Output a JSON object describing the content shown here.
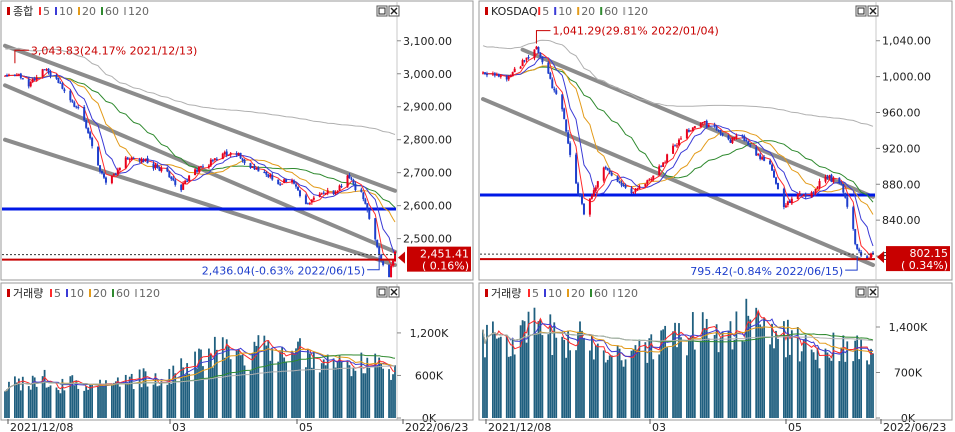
{
  "colors": {
    "up": "#e8001c",
    "down": "#1e3ecc",
    "ma5": "#ff2a2a",
    "ma10": "#3b3bd6",
    "ma20": "#e39b1a",
    "ma60": "#2f8a2f",
    "ma120": "#b0b0b0",
    "volume_bar": "#1f5f7f",
    "channel": "#8c8c8c",
    "support": "#0018e6",
    "current": "#c80000"
  },
  "toolbar": {
    "restore_glyph": "□",
    "close_glyph": "✕"
  },
  "panels": [
    {
      "id": "kospi",
      "price_legend": {
        "name": "종합",
        "ma": [
          "5",
          "10",
          "20",
          "60",
          "120"
        ]
      },
      "volume_legend": {
        "name": "거래량",
        "ma": [
          "5",
          "10",
          "20",
          "60",
          "120"
        ]
      },
      "price_axis": {
        "ticks": [
          "3,100.00",
          "3,000.00",
          "2,900.00",
          "2,800.00",
          "2,700.00",
          "2,600.00",
          "2,500.00"
        ],
        "values": [
          3100,
          3000,
          2900,
          2800,
          2700,
          2600,
          2500
        ],
        "ylim": [
          2420,
          3160
        ]
      },
      "volume_axis": {
        "ticks": [
          "1,200K",
          "600K",
          "0K"
        ],
        "values": [
          1200,
          600,
          0
        ],
        "ylim": [
          0,
          1650
        ]
      },
      "x_ticks": [
        "2021/12/08",
        "03",
        "05",
        "2022/06/23"
      ],
      "x_tick_dates": [
        "2021-12-08",
        "2022-03-02",
        "2022-05-02",
        "2022-06-23"
      ],
      "high_label": "3,043.83(24.17% 2021/12/13)",
      "high_date": "2021-12-13",
      "high_value": 3043.83,
      "low_label": "2,436.04(-0.63% 2022/06/15)",
      "low_date": "2022-06-15",
      "low_value": 2436.04,
      "current_price": "2,451.41",
      "current_change": "( 0.16%)",
      "current_value": 2451.41,
      "support_level": 2590,
      "chart_data": [
        {
          "type": "candlestick",
          "title": "종합",
          "x_range": [
            "2021-12-08",
            "2022-06-23"
          ],
          "ylim": [
            2420,
            3160
          ],
          "approx_close": [
            [
              "2021-12-08",
              3001
            ],
            [
              "2021-12-13",
              3002
            ],
            [
              "2021-12-20",
              2963
            ],
            [
              "2021-12-27",
              3012
            ],
            [
              "2022-01-03",
              2989
            ],
            [
              "2022-01-10",
              2926
            ],
            [
              "2022-01-17",
              2864
            ],
            [
              "2022-01-24",
              2720
            ],
            [
              "2022-01-28",
              2663
            ],
            [
              "2022-02-07",
              2746
            ],
            [
              "2022-02-14",
              2744
            ],
            [
              "2022-02-21",
              2719
            ],
            [
              "2022-02-28",
              2699
            ],
            [
              "2022-03-07",
              2651
            ],
            [
              "2022-03-14",
              2707
            ],
            [
              "2022-03-21",
              2729
            ],
            [
              "2022-03-28",
              2757
            ],
            [
              "2022-04-04",
              2757
            ],
            [
              "2022-04-11",
              2716
            ],
            [
              "2022-04-18",
              2704
            ],
            [
              "2022-04-25",
              2667
            ],
            [
              "2022-05-02",
              2677
            ],
            [
              "2022-05-09",
              2604
            ],
            [
              "2022-05-16",
              2639
            ],
            [
              "2022-05-23",
              2638
            ],
            [
              "2022-05-30",
              2685
            ],
            [
              "2022-06-07",
              2626
            ],
            [
              "2022-06-13",
              2492
            ],
            [
              "2022-06-15",
              2447
            ],
            [
              "2022-06-20",
              2391
            ],
            [
              "2022-06-23",
              2451.41
            ]
          ],
          "lines": [
            {
              "name": "channel-upper",
              "points": [
                [
                  "2021-12-08",
                  3085
                ],
                [
                  "2022-06-23",
                  2645
                ]
              ]
            },
            {
              "name": "channel-middle",
              "points": [
                [
                  "2021-12-08",
                  2965
                ],
                [
                  "2022-06-23",
                  2460
                ]
              ]
            },
            {
              "name": "channel-lower",
              "points": [
                [
                  "2021-12-08",
                  2800
                ],
                [
                  "2022-06-23",
                  2420
                ]
              ]
            }
          ]
        },
        {
          "type": "bar",
          "title": "거래량",
          "x_range": [
            "2021-12-08",
            "2022-06-23"
          ],
          "ylim": [
            0,
            1650
          ],
          "approx_values_k": [
            420,
            520,
            470,
            560,
            440,
            500,
            430,
            470,
            520,
            560,
            540,
            580,
            600,
            640,
            760,
            820,
            900,
            1000,
            880,
            840,
            1080,
            940,
            880,
            920,
            800,
            760,
            700,
            760,
            840,
            680,
            620
          ]
        }
      ]
    },
    {
      "id": "kosdaq",
      "price_legend": {
        "name": "KOSDAQ",
        "ma": [
          "5",
          "10",
          "20",
          "60",
          "120"
        ]
      },
      "volume_legend": {
        "name": "거래량",
        "ma": [
          "5",
          "10",
          "20",
          "60",
          "120"
        ]
      },
      "price_axis": {
        "ticks": [
          "1,040.00",
          "1,000.00",
          "960.00",
          "920.00",
          "880.00",
          "840.00",
          "800.00"
        ],
        "values": [
          1040,
          1000,
          960,
          920,
          880,
          840,
          800
        ],
        "ylim": [
          790,
          1062
        ]
      },
      "volume_axis": {
        "ticks": [
          "1,400K",
          "700K",
          "0K"
        ],
        "values": [
          1400,
          700,
          0
        ],
        "ylim": [
          0,
          1800
        ]
      },
      "x_ticks": [
        "2021/12/08",
        "03",
        "05",
        "2022/06/23"
      ],
      "x_tick_dates": [
        "2021-12-08",
        "2022-03-02",
        "2022-05-02",
        "2022-06-23"
      ],
      "high_label": "1,041.29(29.81% 2022/01/04)",
      "high_date": "2022-01-04",
      "high_value": 1041.29,
      "low_label": "795.42(-0.84% 2022/06/15)",
      "low_date": "2022-06-15",
      "low_value": 795.42,
      "current_price": "802.15",
      "current_change": "( 0.34%)",
      "current_value": 802.15,
      "support_level": 868,
      "chart_data": [
        {
          "type": "candlestick",
          "title": "KOSDAQ",
          "x_range": [
            "2021-12-08",
            "2022-06-23"
          ],
          "ylim": [
            790,
            1062
          ],
          "approx_close": [
            [
              "2021-12-08",
              1006
            ],
            [
              "2021-12-13",
              1002
            ],
            [
              "2021-12-20",
              996
            ],
            [
              "2021-12-27",
              1013
            ],
            [
              "2022-01-04",
              1034
            ],
            [
              "2022-01-10",
              1001
            ],
            [
              "2022-01-17",
              963
            ],
            [
              "2022-01-24",
              880
            ],
            [
              "2022-01-28",
              849
            ],
            [
              "2022-02-07",
              898
            ],
            [
              "2022-02-14",
              884
            ],
            [
              "2022-02-21",
              872
            ],
            [
              "2022-02-28",
              880
            ],
            [
              "2022-03-07",
              897
            ],
            [
              "2022-03-14",
              921
            ],
            [
              "2022-03-21",
              939
            ],
            [
              "2022-03-28",
              949
            ],
            [
              "2022-04-04",
              944
            ],
            [
              "2022-04-11",
              928
            ],
            [
              "2022-04-18",
              934
            ],
            [
              "2022-04-25",
              915
            ],
            [
              "2022-05-02",
              901
            ],
            [
              "2022-05-09",
              855
            ],
            [
              "2022-05-16",
              867
            ],
            [
              "2022-05-23",
              870
            ],
            [
              "2022-05-30",
              889
            ],
            [
              "2022-06-07",
              880
            ],
            [
              "2022-06-13",
              828
            ],
            [
              "2022-06-15",
              805
            ],
            [
              "2022-06-20",
              799
            ],
            [
              "2022-06-23",
              802.15
            ]
          ],
          "lines": [
            {
              "name": "channel-upper",
              "points": [
                [
                  "2021-12-28",
                  1030
                ],
                [
                  "2022-06-23",
                  866
                ]
              ]
            },
            {
              "name": "channel-lower",
              "points": [
                [
                  "2021-12-08",
                  975
                ],
                [
                  "2022-06-23",
                  790
                ]
              ]
            }
          ]
        },
        {
          "type": "bar",
          "title": "거래량",
          "x_range": [
            "2021-12-08",
            "2022-06-23"
          ],
          "ylim": [
            0,
            1800
          ],
          "approx_values_k": [
            1200,
            1300,
            1150,
            1250,
            1400,
            1300,
            1200,
            1150,
            1250,
            1100,
            1050,
            1000,
            1100,
            1050,
            1200,
            1250,
            1300,
            1400,
            1350,
            1300,
            1500,
            1400,
            1300,
            1250,
            1150,
            1050,
            1000,
            1100,
            1150,
            1000,
            950
          ]
        }
      ]
    }
  ]
}
